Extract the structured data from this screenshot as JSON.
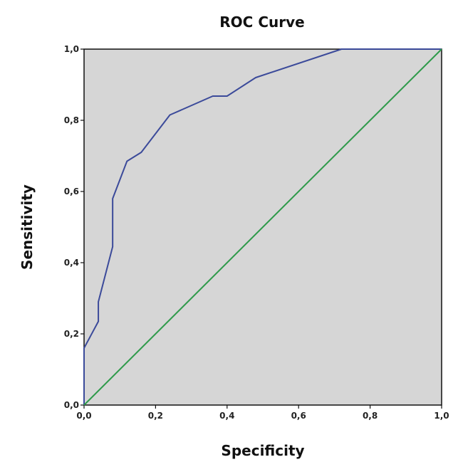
{
  "chart_data": {
    "type": "line",
    "title": "ROC Curve",
    "xlabel": "Specificity",
    "ylabel": "Sensitivity",
    "xlim": [
      0,
      1
    ],
    "ylim": [
      0,
      1
    ],
    "x_ticks": [
      "0,0",
      "0,2",
      "0,4",
      "0,6",
      "0,8",
      "1,0"
    ],
    "y_ticks": [
      "0,0",
      "0,2",
      "0,4",
      "0,6",
      "0,8",
      "1,0"
    ],
    "grid": false,
    "legend": "none",
    "plot_background": "#d6d6d6",
    "series": [
      {
        "color": "#3b4a9a",
        "x": [
          0,
          0,
          0.04,
          0.04,
          0.08,
          0.08,
          0.12,
          0.16,
          0.24,
          0.36,
          0.4,
          0.48,
          0.72,
          1.0
        ],
        "y": [
          0,
          0.16,
          0.235,
          0.29,
          0.445,
          0.58,
          0.685,
          0.71,
          0.815,
          0.868,
          0.868,
          0.92,
          1.0,
          1.0
        ]
      },
      {
        "color": "#2e9a4a",
        "x": [
          0,
          1
        ],
        "y": [
          0,
          1
        ]
      }
    ]
  }
}
